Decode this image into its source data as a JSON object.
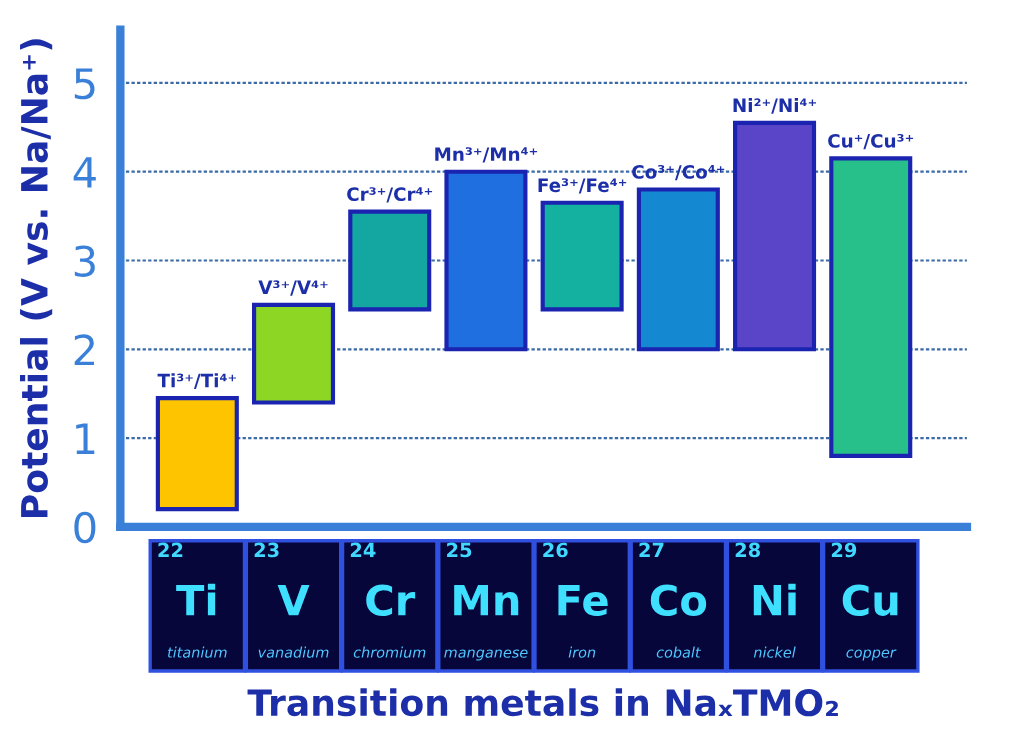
{
  "chart_data": {
    "type": "bar",
    "xlabel": "Transition metals in NaₓTMO₂",
    "ylabel": "Potential (V vs. Na/Na⁺)",
    "categories": [
      "Ti",
      "V",
      "Cr",
      "Mn",
      "Fe",
      "Co",
      "Ni",
      "Cu"
    ],
    "base": [
      0.2,
      1.4,
      2.45,
      2.0,
      2.45,
      2.0,
      2.0,
      0.8
    ],
    "values": [
      1.25,
      1.1,
      1.1,
      2.0,
      1.2,
      1.8,
      2.55,
      3.35
    ],
    "colors": [
      "#ffc400",
      "#8ed624",
      "#14a6a0",
      "#1f6fe0",
      "#14b0a0",
      "#1488d0",
      "#5a44c8",
      "#28c08a"
    ],
    "value_labels": [
      "Ti³⁺/Ti⁴⁺",
      "V³⁺/V⁴⁺",
      "Cr³⁺/Cr⁴⁺",
      "Mn³⁺/Mn⁴⁺",
      "Fe³⁺/Fe⁴⁺",
      "Co³⁺/Co⁴⁺",
      "Ni²⁺/Ni⁴⁺",
      "Cu⁺/Cu³⁺"
    ],
    "annotations": [
      "22",
      "23",
      "24",
      "25",
      "26",
      "27",
      "28",
      "29",
      "titanium",
      "vanadium",
      "chromium",
      "manganese",
      "iron",
      "cobalt",
      "nickel",
      "copper"
    ],
    "ylim": [
      0,
      5.6
    ],
    "yticks": [
      0,
      1,
      2,
      3,
      4,
      5
    ],
    "grid": "y"
  }
}
